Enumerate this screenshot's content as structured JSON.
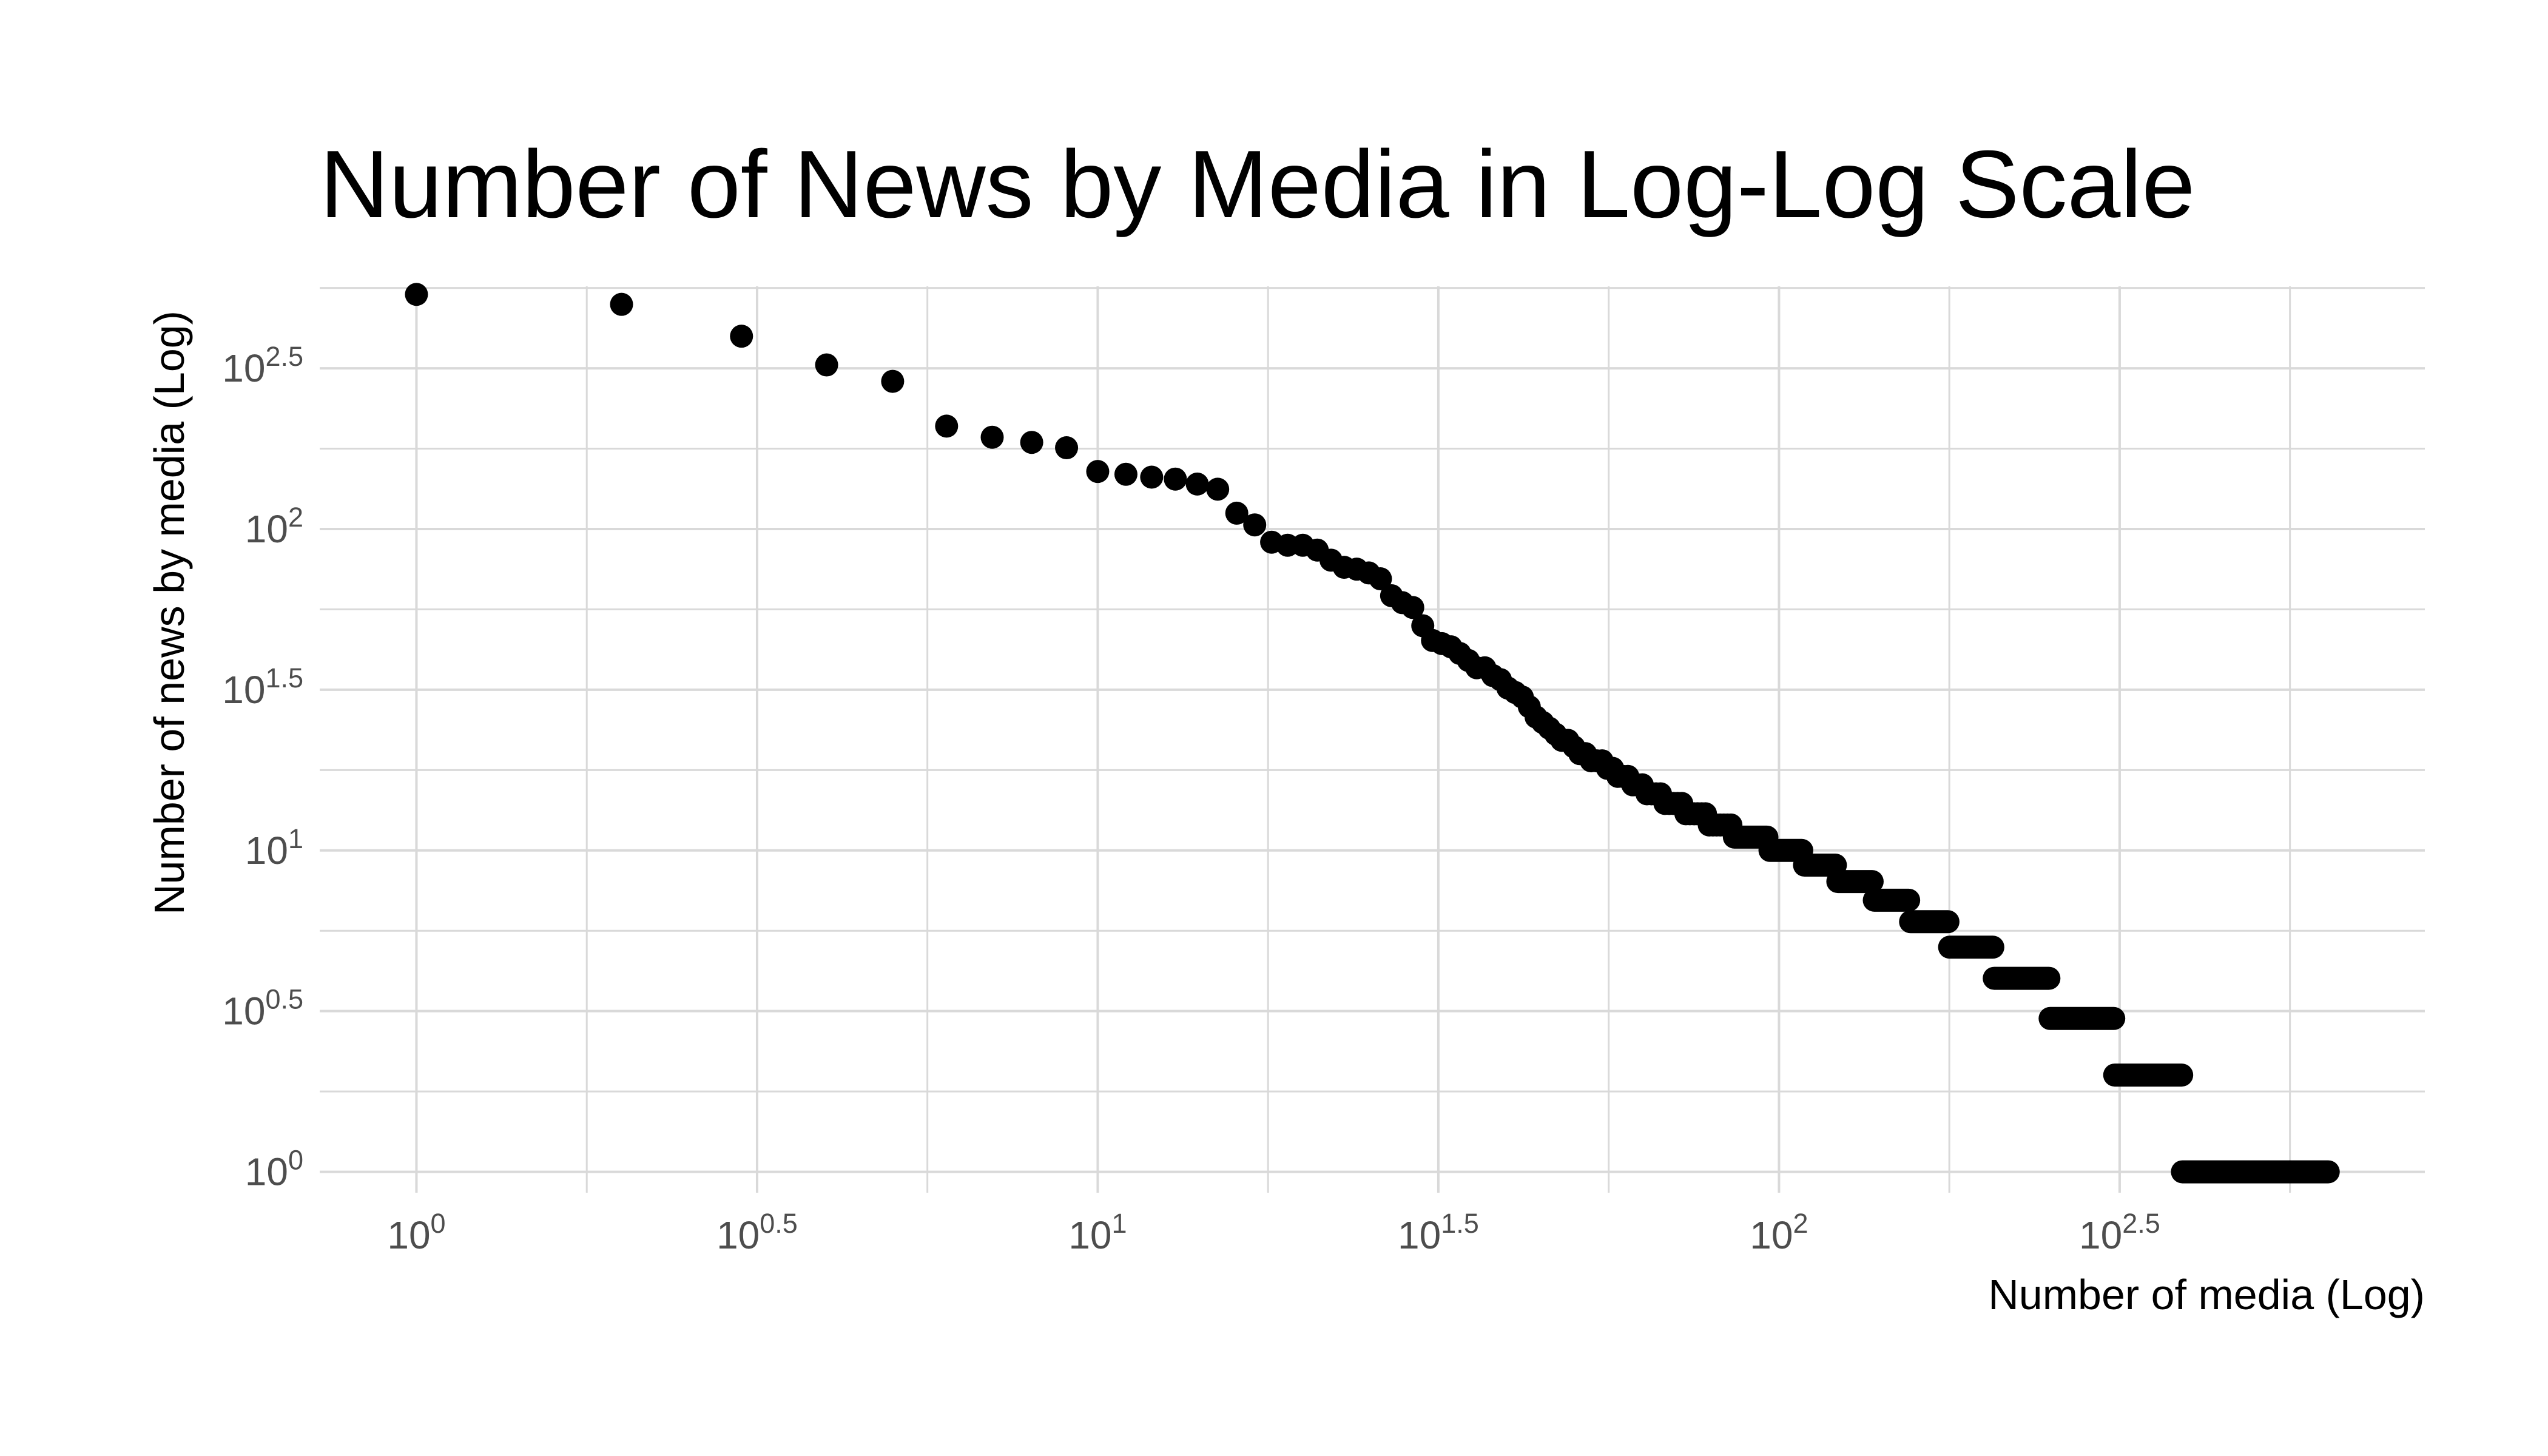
{
  "chart_data": {
    "type": "scatter",
    "title": "Number of News by Media in Log-Log Scale",
    "xlabel": "Number of media (Log)",
    "ylabel": "Number of news by media (Log)",
    "x_scale": "log10",
    "y_scale": "log10",
    "xlim_log10": [
      -0.142,
      2.948
    ],
    "ylim_log10": [
      -0.065,
      2.755
    ],
    "grid": true,
    "legend": "none",
    "x_ticks": [
      {
        "base": "10",
        "exp": "0",
        "value": 1
      },
      {
        "base": "10",
        "exp": "0.5",
        "value": 3.162
      },
      {
        "base": "10",
        "exp": "1",
        "value": 10
      },
      {
        "base": "10",
        "exp": "1.5",
        "value": 31.62
      },
      {
        "base": "10",
        "exp": "2",
        "value": 100
      },
      {
        "base": "10",
        "exp": "2.5",
        "value": 316.2
      }
    ],
    "y_ticks": [
      {
        "base": "10",
        "exp": "0",
        "value": 1
      },
      {
        "base": "10",
        "exp": "0.5",
        "value": 3.162
      },
      {
        "base": "10",
        "exp": "1",
        "value": 10
      },
      {
        "base": "10",
        "exp": "1.5",
        "value": 31.62
      },
      {
        "base": "10",
        "exp": "2",
        "value": 100
      },
      {
        "base": "10",
        "exp": "2.5",
        "value": 316.2
      }
    ],
    "point_color": "#000000",
    "grid_color": "#d9d9d9",
    "series": [
      {
        "points": [
          [
            1,
            537
          ],
          [
            2,
            500
          ],
          [
            3,
            398
          ],
          [
            4,
            324
          ],
          [
            5,
            288
          ],
          [
            6,
            209
          ],
          [
            7,
            193
          ],
          [
            8,
            186
          ],
          [
            9,
            179
          ],
          [
            10,
            151
          ],
          [
            11,
            148
          ],
          [
            12,
            145
          ],
          [
            13,
            143
          ],
          [
            14,
            138
          ],
          [
            15,
            133
          ],
          [
            16,
            112
          ],
          [
            17,
            103
          ],
          [
            18,
            91
          ],
          [
            19,
            89
          ],
          [
            20,
            89
          ],
          [
            21,
            86
          ],
          [
            22,
            80
          ],
          [
            23,
            76
          ],
          [
            24,
            75
          ],
          [
            25,
            73
          ],
          [
            26,
            70
          ],
          [
            27,
            62
          ],
          [
            28,
            59
          ],
          [
            29,
            57
          ],
          [
            30,
            50
          ],
          [
            31,
            45
          ],
          [
            32,
            44
          ],
          [
            33,
            43
          ],
          [
            34,
            41
          ],
          [
            35,
            39
          ],
          [
            36,
            37
          ],
          [
            37,
            37
          ],
          [
            38,
            35
          ],
          [
            39,
            34
          ],
          [
            40,
            32
          ],
          [
            41,
            31
          ],
          [
            42,
            30
          ],
          [
            43,
            28
          ],
          [
            44,
            26
          ],
          [
            45,
            25
          ],
          [
            46,
            24
          ],
          [
            47,
            23
          ],
          [
            48,
            22
          ],
          [
            49,
            22
          ],
          [
            50,
            21
          ],
          [
            51,
            20
          ],
          [
            52,
            20
          ],
          [
            53,
            19
          ],
          [
            54,
            19
          ],
          [
            55,
            19
          ],
          [
            56,
            18
          ],
          [
            57,
            18
          ],
          [
            58,
            17
          ],
          [
            59,
            17
          ],
          [
            60,
            17
          ],
          [
            61,
            16
          ],
          [
            62,
            16
          ],
          [
            63,
            16
          ],
          [
            64,
            15
          ],
          [
            65,
            15
          ],
          [
            66,
            15
          ],
          [
            67,
            15
          ],
          [
            68,
            14
          ],
          [
            69,
            14
          ],
          [
            70,
            14
          ],
          [
            71,
            14
          ],
          [
            72,
            14
          ],
          [
            73,
            13
          ],
          [
            74,
            13
          ],
          [
            75,
            13
          ],
          [
            76,
            13
          ],
          [
            77,
            13
          ],
          [
            78,
            13
          ],
          [
            79,
            12
          ],
          [
            80,
            12
          ],
          [
            81,
            12
          ],
          [
            82,
            12
          ],
          [
            83,
            12
          ],
          [
            84,
            12
          ],
          [
            85,
            12
          ]
        ],
        "count_runs": [
          {
            "y": 11,
            "x_from": 86,
            "x_to": 96
          },
          {
            "y": 10,
            "x_from": 97,
            "x_to": 108
          },
          {
            "y": 9,
            "x_from": 109,
            "x_to": 121
          },
          {
            "y": 8,
            "x_from": 122,
            "x_to": 137
          },
          {
            "y": 7,
            "x_from": 138,
            "x_to": 155
          },
          {
            "y": 6,
            "x_from": 156,
            "x_to": 177
          },
          {
            "y": 5,
            "x_from": 178,
            "x_to": 206
          },
          {
            "y": 4,
            "x_from": 207,
            "x_to": 249
          },
          {
            "y": 3,
            "x_from": 250,
            "x_to": 310
          },
          {
            "y": 2,
            "x_from": 311,
            "x_to": 390
          },
          {
            "y": 1,
            "x_from": 391,
            "x_to": 640
          }
        ]
      }
    ]
  }
}
